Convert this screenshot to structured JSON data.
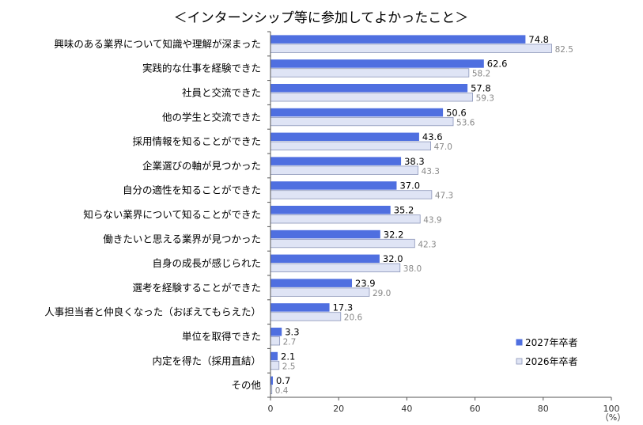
{
  "chart_data": {
    "type": "bar",
    "orientation": "horizontal",
    "title": "＜インターンシップ等に参加してよかったこと＞",
    "unit_label": "（%）",
    "xlim": [
      0,
      100
    ],
    "x_ticks": [
      "0",
      "20",
      "40",
      "60",
      "80",
      "100"
    ],
    "categories": [
      "興味のある業界について知識や理解が深まった",
      "実践的な仕事を経験できた",
      "社員と交流できた",
      "他の学生と交流できた",
      "採用情報を知ることができた",
      "企業選びの軸が見つかった",
      "自分の適性を知ることができた",
      "知らない業界について知ることができた",
      "働きたいと思える業界が見つかった",
      "自身の成長が感じられた",
      "選考を経験することができた",
      "人事担当者と仲良くなった（おぼえてもらえた）",
      "単位を取得できた",
      "内定を得た（採用直結）",
      "その他"
    ],
    "series": [
      {
        "name": "2027年卒者",
        "color": "#4f6fe0",
        "values": [
          74.8,
          62.6,
          57.8,
          50.6,
          43.6,
          38.3,
          37.0,
          35.2,
          32.2,
          32.0,
          23.9,
          17.3,
          3.3,
          2.1,
          0.7
        ],
        "labels": [
          "74.8",
          "62.6",
          "57.8",
          "50.6",
          "43.6",
          "38.3",
          "37.0",
          "35.2",
          "32.2",
          "32.0",
          "23.9",
          "17.3",
          "3.3",
          "2.1",
          "0.7"
        ]
      },
      {
        "name": "2026年卒者",
        "color": "#dfe4f5",
        "values": [
          82.5,
          58.2,
          59.3,
          53.6,
          47.0,
          43.3,
          47.3,
          43.9,
          42.3,
          38.0,
          29.0,
          20.6,
          2.7,
          2.5,
          0.4
        ],
        "labels": [
          "82.5",
          "58.2",
          "59.3",
          "53.6",
          "47.0",
          "43.3",
          "47.3",
          "43.9",
          "42.3",
          "38.0",
          "29.0",
          "20.6",
          "2.7",
          "2.5",
          "0.4"
        ]
      }
    ],
    "legend_position": "bottom-right"
  }
}
